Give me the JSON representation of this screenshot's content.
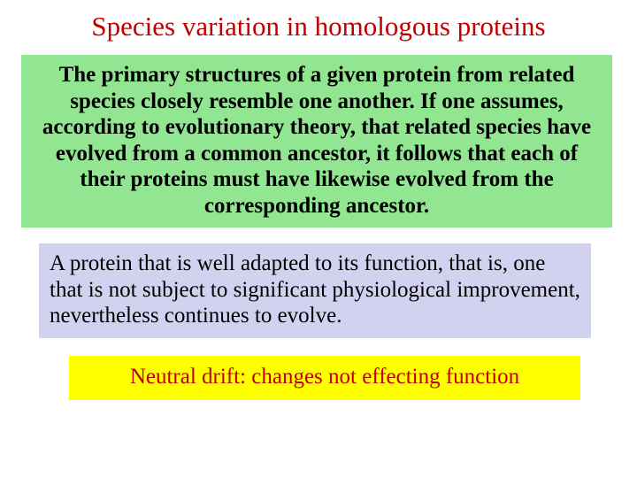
{
  "title": {
    "text": "Species variation in homologous proteins",
    "color": "#c00000"
  },
  "box1": {
    "text": "The primary structures of a given protein from related species closely resemble one another. If one assumes, according to evolutionary theory, that related species have evolved from a common ancestor, it follows that each of their proteins must have likewise evolved from the corresponding ancestor.",
    "background": "#92e692",
    "textColor": "#000000"
  },
  "box2": {
    "text": "A protein that is well adapted to its function, that is, one that is not subject to significant physiological improvement, nevertheless continues to evolve.",
    "background": "#d2d2f0",
    "textColor": "#000000"
  },
  "box3": {
    "text": "Neutral drift: changes not effecting function",
    "background": "#ffff00",
    "textColor": "#c00000"
  }
}
